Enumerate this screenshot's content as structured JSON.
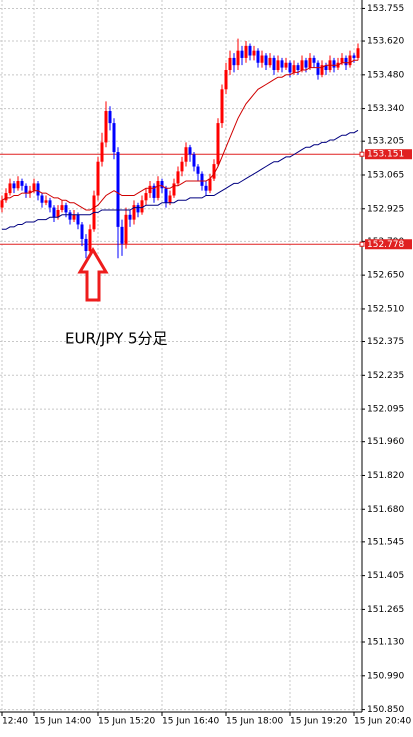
{
  "chart_data": {
    "type": "candlestick",
    "annotation": "EUR/JPY  5分足",
    "xlim": [
      -0.5,
      89.5
    ],
    "xticks": [
      {
        "value": 0,
        "label": "12:40"
      },
      {
        "value": 8,
        "label": "15 Jun 14:00"
      },
      {
        "value": 24,
        "label": "15 Jun 15:20"
      },
      {
        "value": 40,
        "label": "15 Jun 16:40"
      },
      {
        "value": 56,
        "label": "15 Jun 18:00"
      },
      {
        "value": 72,
        "label": "15 Jun 19:20"
      },
      {
        "value": 88,
        "label": "15 Jun 20:40"
      }
    ],
    "ylim": [
      150.84,
      153.79
    ],
    "yticks": [
      153.755,
      {
        "value": 153.62,
        "label": "153.620"
      },
      {
        "value": 153.48,
        "label": "153.480"
      },
      {
        "value": 153.34,
        "label": "153.340"
      },
      153.205,
      153.065,
      152.925,
      {
        "value": 152.79,
        "label": "152.790"
      },
      {
        "value": 152.65,
        "label": "152.650"
      },
      {
        "value": 152.51,
        "label": "152.510"
      },
      152.375,
      152.235,
      152.095,
      {
        "value": 151.96,
        "label": "151.960"
      },
      {
        "value": 151.82,
        "label": "151.820"
      },
      {
        "value": 151.68,
        "label": "151.680"
      },
      151.545,
      151.405,
      151.265,
      {
        "value": 151.13,
        "label": "151.130"
      },
      {
        "value": 150.99,
        "label": "150.990"
      },
      {
        "value": 150.85,
        "label": "150.850"
      }
    ],
    "grid": true,
    "up_color": "#ff0000",
    "down_color": "#0000ff",
    "hlines": [
      153.151,
      152.778
    ],
    "hline_color": "#e02020",
    "open": [
      152.93,
      152.96,
      152.99,
      153.03,
      153.01,
      153.04,
      153.02,
      152.99,
      153.0,
      153.03,
      152.98,
      152.95,
      152.96,
      152.93,
      152.89,
      152.92,
      152.94,
      152.91,
      152.88,
      152.9,
      152.86,
      152.8,
      152.75,
      152.84,
      152.98,
      153.12,
      153.2,
      153.33,
      153.28,
      153.16,
      152.85,
      152.78,
      152.9,
      152.88,
      152.94,
      152.91,
      152.96,
      152.99,
      153.02,
      152.97,
      153.04,
      153.01,
      152.95,
      152.98,
      153.03,
      153.08,
      153.12,
      153.18,
      153.15,
      153.1,
      153.07,
      153.02,
      153.0,
      153.05,
      153.11,
      153.28,
      153.42,
      153.5,
      153.55,
      153.52,
      153.58,
      153.55,
      153.6,
      153.56,
      153.58,
      153.53,
      153.56,
      153.52,
      153.55,
      153.5,
      153.54,
      153.51,
      153.53,
      153.49,
      153.52,
      153.5,
      153.54,
      153.51,
      153.55,
      153.53,
      153.48,
      153.52,
      153.5,
      153.54,
      153.51,
      153.53,
      153.55,
      153.52,
      153.56,
      153.55
    ],
    "high": [
      152.98,
      153.01,
      153.05,
      153.04,
      153.06,
      153.05,
      153.03,
      153.02,
      153.05,
      153.04,
      152.99,
      152.98,
      152.97,
      152.94,
      152.94,
      152.96,
      152.95,
      152.92,
      152.92,
      152.91,
      152.87,
      152.82,
      152.86,
      153.0,
      153.14,
      153.24,
      153.37,
      153.35,
      153.3,
      153.18,
      152.88,
      152.93,
      152.92,
      152.96,
      152.95,
      152.98,
      153.01,
      153.04,
      153.03,
      153.06,
      153.05,
      153.02,
      153.0,
      153.05,
      153.1,
      153.14,
      153.2,
      153.19,
      153.16,
      153.11,
      153.08,
      153.04,
      153.07,
      153.13,
      153.3,
      153.44,
      153.53,
      153.58,
      153.57,
      153.63,
      153.6,
      153.62,
      153.61,
      153.6,
      153.59,
      153.58,
      153.57,
      153.57,
      153.56,
      153.56,
      153.55,
      153.55,
      153.54,
      153.54,
      153.53,
      153.56,
      153.55,
      153.57,
      153.56,
      153.54,
      153.54,
      153.53,
      153.56,
      153.55,
      153.55,
      153.57,
      153.56,
      153.58,
      153.57,
      153.61
    ],
    "low": [
      152.91,
      152.95,
      152.98,
      152.99,
      153.0,
      153.0,
      152.97,
      152.97,
      152.99,
      152.96,
      152.93,
      152.94,
      152.91,
      152.87,
      152.88,
      152.91,
      152.89,
      152.86,
      152.87,
      152.84,
      152.77,
      152.72,
      152.74,
      152.83,
      152.96,
      153.1,
      153.18,
      153.25,
      153.13,
      152.72,
      152.73,
      152.76,
      152.85,
      152.86,
      152.89,
      152.9,
      152.94,
      152.97,
      152.95,
      152.96,
      152.99,
      152.93,
      152.94,
      152.97,
      153.02,
      153.06,
      153.1,
      153.12,
      153.08,
      153.04,
      153.0,
      152.98,
      152.99,
      153.04,
      153.1,
      153.26,
      153.4,
      153.48,
      153.49,
      153.5,
      153.52,
      153.53,
      153.54,
      153.54,
      153.51,
      153.51,
      153.5,
      153.51,
      153.48,
      153.49,
      153.49,
      153.5,
      153.47,
      153.48,
      153.48,
      153.49,
      153.49,
      153.5,
      153.51,
      153.46,
      153.47,
      153.48,
      153.49,
      153.49,
      153.5,
      153.52,
      153.5,
      153.51,
      153.53,
      153.54
    ],
    "close": [
      152.96,
      152.99,
      153.03,
      153.01,
      153.04,
      153.02,
      152.99,
      153.0,
      153.03,
      152.98,
      152.95,
      152.96,
      152.93,
      152.89,
      152.92,
      152.94,
      152.91,
      152.88,
      152.9,
      152.86,
      152.8,
      152.75,
      152.84,
      152.98,
      153.12,
      153.2,
      153.33,
      153.28,
      153.16,
      152.85,
      152.78,
      152.9,
      152.88,
      152.94,
      152.91,
      152.96,
      152.99,
      153.02,
      152.97,
      153.04,
      153.01,
      152.95,
      152.98,
      153.03,
      153.08,
      153.12,
      153.18,
      153.15,
      153.1,
      153.07,
      153.02,
      153.0,
      153.05,
      153.11,
      153.28,
      153.42,
      153.5,
      153.55,
      153.52,
      153.58,
      153.55,
      153.6,
      153.56,
      153.58,
      153.53,
      153.56,
      153.52,
      153.55,
      153.5,
      153.54,
      153.51,
      153.53,
      153.49,
      153.52,
      153.5,
      153.54,
      153.51,
      153.55,
      153.53,
      153.48,
      153.52,
      153.5,
      153.54,
      153.51,
      153.53,
      153.55,
      153.52,
      153.56,
      153.55,
      153.59
    ],
    "lines": [
      {
        "color": "#d00000",
        "values": [
          152.96,
          152.97,
          152.97,
          152.98,
          152.98,
          152.99,
          152.99,
          152.99,
          153.0,
          153.0,
          152.99,
          152.99,
          152.98,
          152.97,
          152.97,
          152.96,
          152.96,
          152.95,
          152.95,
          152.94,
          152.93,
          152.92,
          152.92,
          152.93,
          152.94,
          152.96,
          152.98,
          152.99,
          153.0,
          152.99,
          152.98,
          152.98,
          152.98,
          152.98,
          152.99,
          153.0,
          153.01,
          153.01,
          153.01,
          153.02,
          153.02,
          153.01,
          153.01,
          153.02,
          153.02,
          153.03,
          153.04,
          153.04,
          153.04,
          153.04,
          153.04,
          153.04,
          153.05,
          153.07,
          153.1,
          153.14,
          153.18,
          153.22,
          153.26,
          153.3,
          153.33,
          153.36,
          153.38,
          153.4,
          153.42,
          153.43,
          153.44,
          153.45,
          153.46,
          153.47,
          153.47,
          153.48,
          153.48,
          153.49,
          153.49,
          153.5,
          153.5,
          153.51,
          153.51,
          153.51,
          153.51,
          153.52,
          153.52,
          153.52,
          153.52,
          153.53,
          153.53,
          153.53,
          153.54,
          153.54
        ]
      },
      {
        "color": "#000080",
        "values": [
          152.84,
          152.84,
          152.85,
          152.85,
          152.86,
          152.86,
          152.87,
          152.87,
          152.87,
          152.88,
          152.88,
          152.88,
          152.89,
          152.89,
          152.89,
          152.9,
          152.9,
          152.9,
          152.9,
          152.9,
          152.9,
          152.9,
          152.9,
          152.91,
          152.91,
          152.92,
          152.92,
          152.92,
          152.92,
          152.92,
          152.92,
          152.92,
          152.92,
          152.93,
          152.93,
          152.93,
          152.94,
          152.94,
          152.94,
          152.94,
          152.95,
          152.95,
          152.95,
          152.95,
          152.96,
          152.96,
          152.96,
          152.97,
          152.97,
          152.97,
          152.97,
          152.98,
          152.98,
          152.98,
          152.99,
          153.0,
          153.01,
          153.02,
          153.03,
          153.03,
          153.04,
          153.05,
          153.06,
          153.07,
          153.08,
          153.09,
          153.1,
          153.11,
          153.12,
          153.12,
          153.13,
          153.14,
          153.14,
          153.15,
          153.16,
          153.17,
          153.18,
          153.18,
          153.19,
          153.19,
          153.2,
          153.2,
          153.21,
          153.21,
          153.22,
          153.23,
          153.23,
          153.24,
          153.24,
          153.25
        ]
      }
    ]
  }
}
